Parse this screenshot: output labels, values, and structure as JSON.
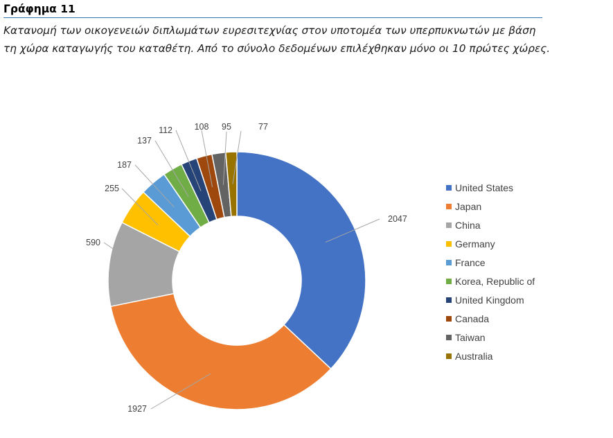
{
  "figure": {
    "title": "Γράφημα 11",
    "caption_line1": "Κατανομή των οικογενειών διπλωμάτων ευρεσιτεχνίας στον υποτομέα των υπερπυκνωτών με βάση",
    "caption_line2": "τη χώρα καταγωγής του καταθέτη. Από το σύνολο δεδομένων επιλέχθηκαν μόνο οι 10 πρώτες χώρες."
  },
  "chart_data": {
    "type": "pie",
    "variant": "donut",
    "categories": [
      "United States",
      "Japan",
      "China",
      "Germany",
      "France",
      "Korea, Republic of",
      "United Kingdom",
      "Canada",
      "Taiwan",
      "Australia"
    ],
    "values": [
      2047,
      1927,
      590,
      255,
      187,
      137,
      112,
      108,
      95,
      77
    ],
    "colors": [
      "#4472c4",
      "#ed7d31",
      "#a5a5a5",
      "#ffc000",
      "#5b9bd5",
      "#70ad47",
      "#264478",
      "#9e480e",
      "#636363",
      "#997300"
    ],
    "data_labels": [
      "2047",
      "1927",
      "590",
      "255",
      "187",
      "137",
      "112",
      "108",
      "95",
      "77"
    ],
    "legend_position": "right",
    "start_angle": "12 o'clock, clockwise"
  }
}
